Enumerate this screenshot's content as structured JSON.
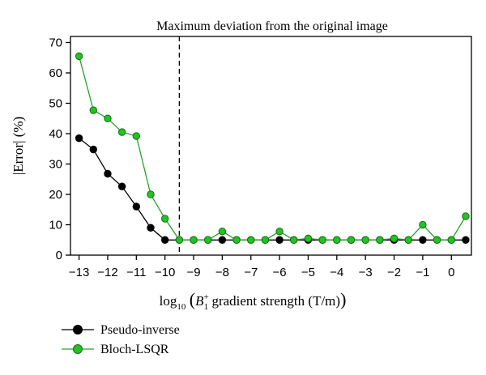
{
  "chart_data": {
    "type": "line",
    "title": "Maximum deviation from the original image",
    "ylabel": "|Error| (%)",
    "xlabel": {
      "prefix": "log",
      "prefix_sub": "10",
      "symbol": "B",
      "symbol_sup": "+",
      "symbol_sub": "1",
      "text": " gradient strength (T/m)"
    },
    "xlim": [
      -13.3,
      0.7
    ],
    "ylim": [
      0,
      72
    ],
    "x_ticks": [
      -13,
      -12,
      -11,
      -10,
      -9,
      -8,
      -7,
      -6,
      -5,
      -4,
      -3,
      -2,
      -1,
      0
    ],
    "x_tick_labels": [
      "−13",
      "−12",
      "−11",
      "−10",
      "−9",
      "−8",
      "−7",
      "−6",
      "−5",
      "−4",
      "−3",
      "−2",
      "−1",
      "0"
    ],
    "y_ticks": [
      0,
      10,
      20,
      30,
      40,
      50,
      60,
      70
    ],
    "y_tick_labels": [
      "0",
      "10",
      "20",
      "30",
      "40",
      "50",
      "60",
      "70"
    ],
    "vline_x": -9.5,
    "x": [
      -13,
      -12.5,
      -12,
      -11.5,
      -11,
      -10.5,
      -10,
      -9.5,
      -9,
      -8.5,
      -8,
      -7.5,
      -7,
      -6.5,
      -6,
      -5.5,
      -5,
      -4.5,
      -4,
      -3.5,
      -3,
      -2.5,
      -2,
      -1.5,
      -1,
      -0.5,
      0,
      0.5
    ],
    "series": [
      {
        "name": "Pseudo-inverse",
        "color": "#000000",
        "values": [
          38.5,
          34.8,
          26.8,
          22.6,
          16,
          9,
          5,
          5,
          5,
          5,
          5,
          5,
          5,
          5,
          5,
          5,
          5,
          5,
          5,
          5,
          5,
          5,
          5,
          5,
          5,
          5,
          5,
          5
        ]
      },
      {
        "name": "Bloch-LSQR",
        "color": "#2ca02c",
        "values": [
          65.5,
          47.7,
          45,
          40.5,
          39.2,
          20,
          12,
          5,
          5,
          5,
          7.8,
          5,
          5,
          5,
          7.8,
          5,
          5.5,
          5,
          5,
          5,
          5,
          5,
          5.5,
          5,
          10,
          5,
          5,
          12.8
        ]
      }
    ],
    "legend": "bottom-left"
  }
}
